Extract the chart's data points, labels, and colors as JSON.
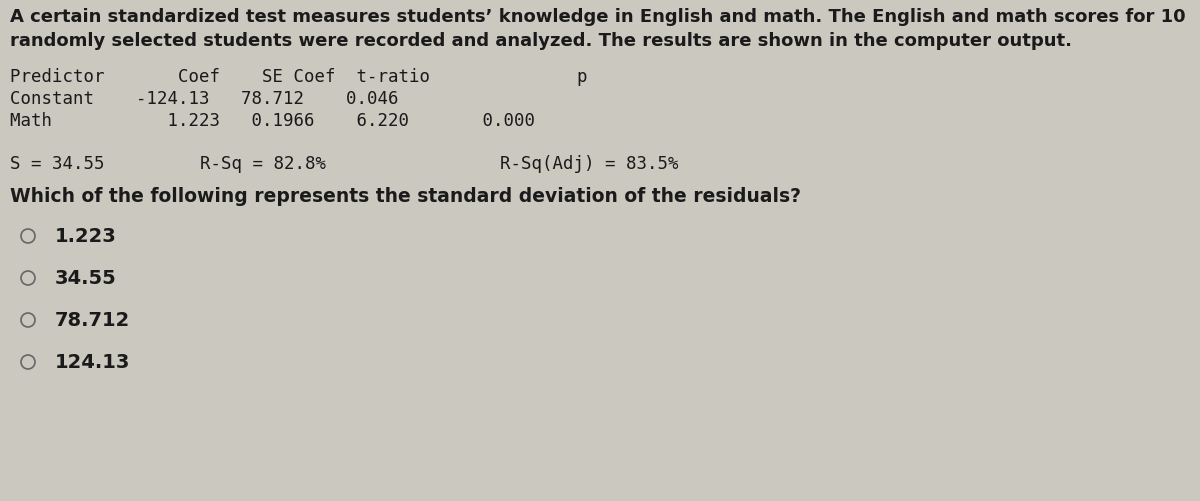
{
  "bg_color": "#cbc8c0",
  "text_color": "#1a1a1a",
  "title_line1": "A certain standardized test measures students’ knowledge in English and math. The English and math scores for 10",
  "title_line2": "randomly selected students were recorded and analyzed. The results are shown in the computer output.",
  "header_line": "Predictor       Coef    SE Coef  t-ratio              p",
  "row1_a": "Constant    -124.13   78.712    0.046",
  "row2_a": "Math           1.223   0.1966    6.220       0.000",
  "stats_s": "S = 34.55",
  "stats_rsq": "R-Sq = 82.8%",
  "stats_rsqadj": "R-Sq(Adj) = 83.5%",
  "question": "Which of the following represents the standard deviation of the residuals?",
  "choices": [
    "1.223",
    "34.55",
    "78.712",
    "124.13"
  ],
  "mono_font": "monospace",
  "sans_font": "DejaVu Sans",
  "fs_title": 13.0,
  "fs_mono": 12.5,
  "fs_question": 13.5,
  "fs_choices": 14.0
}
